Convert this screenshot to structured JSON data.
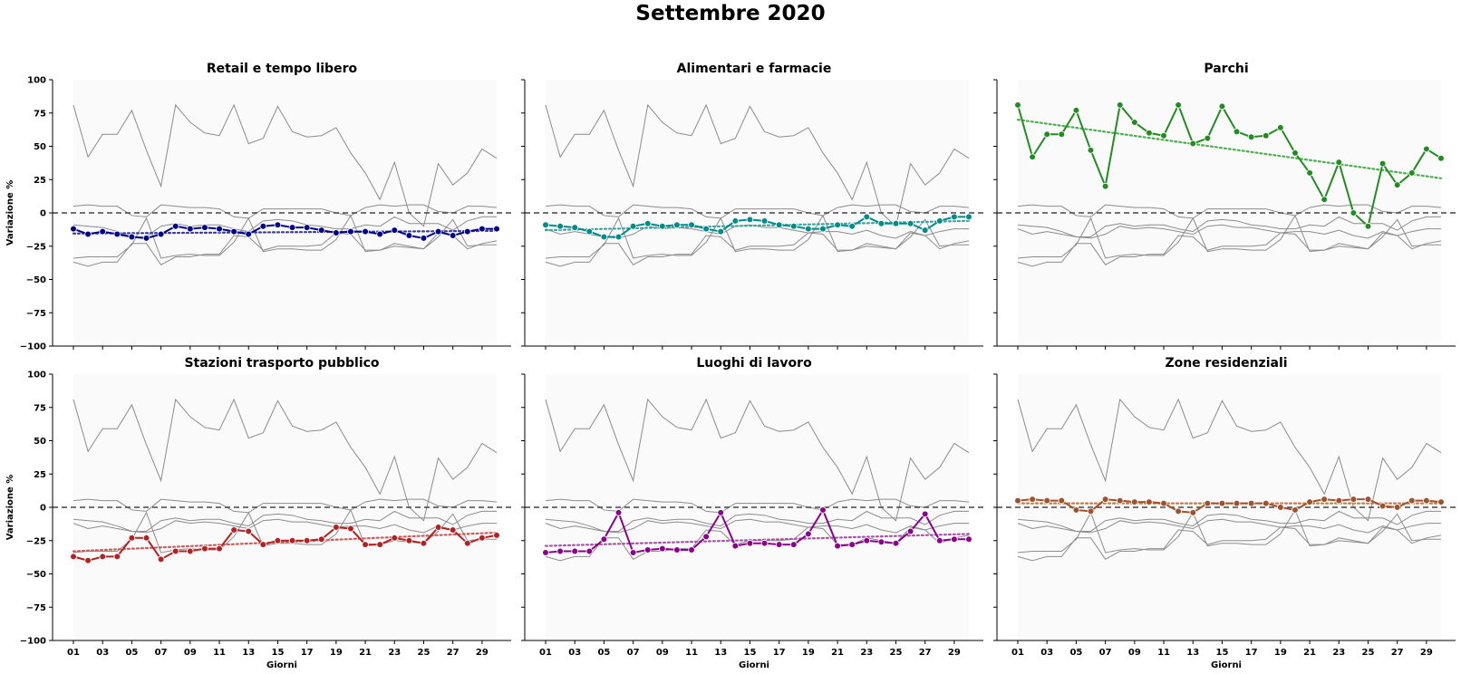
{
  "title": "Settembre 2020",
  "axes": {
    "xlabel": "Giorni",
    "ylabel": "Variazione %"
  },
  "colors": {
    "background_series": "#8c8c8c",
    "zero_line": "#444444",
    "panel_bg": "#fafafa"
  },
  "chart_data": [
    {
      "type": "line",
      "title": "Retail e tempo libero",
      "color": "#00008b",
      "trend_color": "#3b3ba0",
      "xlabel": "",
      "ylabel": "Variazione %",
      "ylim": [
        -100,
        100
      ],
      "x_ticks": [
        "01",
        "03",
        "05",
        "07",
        "09",
        "11",
        "13",
        "15",
        "17",
        "19",
        "21",
        "23",
        "25",
        "27",
        "29"
      ],
      "y_ticks": [
        100,
        75,
        50,
        25,
        0,
        -25,
        -50,
        -75,
        -100
      ],
      "grid": false,
      "zero_line": true,
      "values": [
        -12,
        -16,
        -14,
        -16,
        -18,
        -19,
        -16,
        -10,
        -12,
        -11,
        -12,
        -14,
        -16,
        -10,
        -9,
        -11,
        -11,
        -13,
        -15,
        -14,
        -14,
        -16,
        -13,
        -17,
        -19,
        -14,
        -17,
        -14,
        -12,
        -12
      ],
      "trend": [
        -15.5,
        -13.5
      ]
    },
    {
      "type": "line",
      "title": "Alimentari e farmacie",
      "color": "#008b8b",
      "trend_color": "#3fa3a3",
      "xlabel": "",
      "ylabel": "",
      "ylim": [
        -100,
        100
      ],
      "x_ticks": [
        "01",
        "03",
        "05",
        "07",
        "09",
        "11",
        "13",
        "15",
        "17",
        "19",
        "21",
        "23",
        "25",
        "27",
        "29"
      ],
      "y_ticks": [
        100,
        75,
        50,
        25,
        0,
        -25,
        -50,
        -75,
        -100
      ],
      "grid": false,
      "zero_line": true,
      "values": [
        -9,
        -10,
        -11,
        -14,
        -18,
        -18,
        -10,
        -8,
        -10,
        -9,
        -9,
        -12,
        -14,
        -6,
        -5,
        -6,
        -9,
        -10,
        -12,
        -12,
        -9,
        -10,
        -3,
        -8,
        -8,
        -8,
        -13,
        -6,
        -3,
        -3
      ],
      "trend": [
        -13,
        -6
      ]
    },
    {
      "type": "line",
      "title": "Parchi",
      "color": "#228b22",
      "trend_color": "#4caf50",
      "xlabel": "",
      "ylabel": "",
      "ylim": [
        -100,
        100
      ],
      "x_ticks": [
        "01",
        "03",
        "05",
        "07",
        "09",
        "11",
        "13",
        "15",
        "17",
        "19",
        "21",
        "23",
        "25",
        "27",
        "29"
      ],
      "y_ticks": [
        100,
        75,
        50,
        25,
        0,
        -25,
        -50,
        -75,
        -100
      ],
      "grid": false,
      "zero_line": true,
      "values": [
        81,
        42,
        59,
        59,
        77,
        47,
        20,
        81,
        68,
        60,
        58,
        81,
        52,
        56,
        80,
        61,
        57,
        58,
        64,
        45,
        30,
        10,
        38,
        0,
        -10,
        37,
        21,
        30,
        48,
        41
      ],
      "trend": [
        70,
        26
      ]
    },
    {
      "type": "line",
      "title": "Stazioni trasporto pubblico",
      "color": "#b22222",
      "trend_color": "#cd5c5c",
      "xlabel": "Giorni",
      "ylabel": "Variazione %",
      "ylim": [
        -100,
        100
      ],
      "x_ticks": [
        "01",
        "03",
        "05",
        "07",
        "09",
        "11",
        "13",
        "15",
        "17",
        "19",
        "21",
        "23",
        "25",
        "27",
        "29"
      ],
      "y_ticks": [
        100,
        75,
        50,
        25,
        0,
        -25,
        -50,
        -75,
        -100
      ],
      "grid": false,
      "zero_line": true,
      "values": [
        -37,
        -40,
        -37,
        -37,
        -23,
        -23,
        -39,
        -33,
        -33,
        -31,
        -31,
        -17,
        -18,
        -28,
        -25,
        -25,
        -25,
        -24,
        -15,
        -16,
        -28,
        -28,
        -23,
        -25,
        -27,
        -15,
        -17,
        -27,
        -23,
        -21
      ],
      "trend": [
        -33,
        -19
      ]
    },
    {
      "type": "line",
      "title": "Luoghi di lavoro",
      "color": "#8b008b",
      "trend_color": "#a855a8",
      "xlabel": "Giorni",
      "ylabel": "",
      "ylim": [
        -100,
        100
      ],
      "x_ticks": [
        "01",
        "03",
        "05",
        "07",
        "09",
        "11",
        "13",
        "15",
        "17",
        "19",
        "21",
        "23",
        "25",
        "27",
        "29"
      ],
      "y_ticks": [
        100,
        75,
        50,
        25,
        0,
        -25,
        -50,
        -75,
        -100
      ],
      "grid": false,
      "zero_line": true,
      "values": [
        -34,
        -33,
        -33,
        -33,
        -24,
        -4,
        -34,
        -32,
        -31,
        -32,
        -32,
        -22,
        -4,
        -29,
        -27,
        -27,
        -28,
        -28,
        -20,
        -2,
        -29,
        -28,
        -25,
        -26,
        -27,
        -18,
        -5,
        -25,
        -24,
        -24
      ],
      "trend": [
        -29,
        -20
      ]
    },
    {
      "type": "line",
      "title": "Zone residenziali",
      "color": "#a0522d",
      "trend_color": "#c87a4a",
      "xlabel": "Giorni",
      "ylabel": "",
      "ylim": [
        -100,
        100
      ],
      "x_ticks": [
        "01",
        "03",
        "05",
        "07",
        "09",
        "11",
        "13",
        "15",
        "17",
        "19",
        "21",
        "23",
        "25",
        "27",
        "29"
      ],
      "y_ticks": [
        100,
        75,
        50,
        25,
        0,
        -25,
        -50,
        -75,
        -100
      ],
      "grid": false,
      "zero_line": true,
      "values": [
        5,
        6,
        5,
        5,
        -2,
        -3,
        6,
        5,
        4,
        4,
        3,
        -3,
        -4,
        3,
        3,
        3,
        3,
        3,
        0,
        -2,
        4,
        6,
        5,
        6,
        6,
        1,
        0,
        5,
        5,
        4
      ],
      "trend": [
        3,
        3
      ]
    }
  ]
}
